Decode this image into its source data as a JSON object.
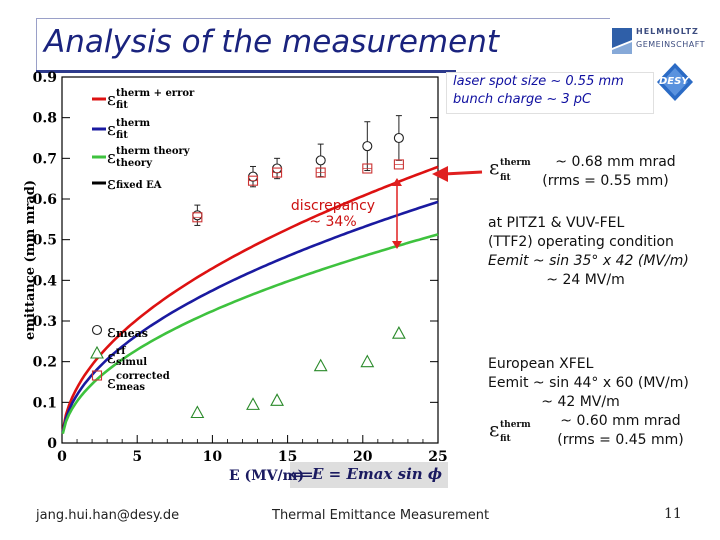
{
  "slide": {
    "title": "Analysis of the measurement",
    "page_number": "11",
    "footer_email": "jang.hui.han@desy.de",
    "footer_title": "Thermal Emittance Measurement"
  },
  "logos": {
    "helmholtz_line1": "HELMHOLTZ",
    "helmholtz_line2": "GEMEINSCHAFT",
    "desy": "DESY"
  },
  "notes": {
    "laser_spot": "laser spot size ~ 0.55 mm",
    "bunch_charge": "bunch charge ~ 3 pC",
    "fit_value": "~ 0.68 mm mrad",
    "fit_rrms": "(rrms = 0.55 mm)",
    "pitz_line1": "at PITZ1 & VUV-FEL",
    "pitz_line2": "(TTF2) operating condition",
    "pitz_line3": "Eemit ~ sin 35° x 42 (MV/m)",
    "pitz_line4": "~ 24 MV/m",
    "xfel_line1": "European XFEL",
    "xfel_line2": "Eemit ~ sin 44° x 60 (MV/m)",
    "xfel_line3": "~ 42 MV/m",
    "xfel_line4": "~ 0.60 mm mrad",
    "xfel_line5": "(rrms = 0.45 mm)",
    "discrepancy": "discrepancy",
    "discrepancy_value": "~ 34%",
    "formula": "E = Emax sin ϕ"
  },
  "colors": {
    "title": "#1a237e",
    "fit_error": "#dd1111",
    "fit_therm": "#1a1aa0",
    "theory": "#3ec23e",
    "fixed": "#000000",
    "meas": "#222222",
    "simul": "#2a8a2a",
    "corrected": "#cc3333",
    "arrow": "#e02020"
  },
  "chart_data": {
    "type": "scatter",
    "xlabel": "E (MV/m)",
    "ylabel": "emittance (mm mrad)",
    "xlim": [
      0,
      25
    ],
    "ylim": [
      0,
      0.9
    ],
    "xticks": [
      "0",
      "5",
      "10",
      "15",
      "20",
      "25"
    ],
    "yticks": [
      "0",
      "0.1",
      "0.2",
      "0.3",
      "0.4",
      "0.5",
      "0.6",
      "0.7",
      "0.8",
      "0.9"
    ],
    "curves": [
      {
        "name": "therm + error",
        "color": "#dd1111",
        "coef": 0.1358
      },
      {
        "name": "therm",
        "color": "#1a1aa0",
        "coef": 0.1186
      },
      {
        "name": "therm theory",
        "color": "#3ec23e",
        "coef": 0.1026
      }
    ],
    "legend_lines": [
      "therm + error",
      "therm",
      "therm theory",
      "fixed EA"
    ],
    "legend_markers": [
      "meas",
      "rf simul",
      "corrected meas"
    ],
    "series": [
      {
        "name": "meas",
        "marker": "circle",
        "x": [
          9,
          12.7,
          14.3,
          17.2,
          20.3,
          22.4
        ],
        "y": [
          0.56,
          0.655,
          0.675,
          0.695,
          0.73,
          0.75
        ],
        "err": [
          0.025,
          0.025,
          0.025,
          0.04,
          0.06,
          0.055
        ]
      },
      {
        "name": "corrected meas",
        "marker": "square",
        "x": [
          9,
          12.7,
          14.3,
          17.2,
          20.3,
          22.4
        ],
        "y": [
          0.555,
          0.645,
          0.665,
          0.665,
          0.675,
          0.685
        ]
      },
      {
        "name": "rf simul",
        "marker": "triangle",
        "x": [
          9,
          12.7,
          14.3,
          17.2,
          20.3,
          22.4
        ],
        "y": [
          0.075,
          0.095,
          0.105,
          0.19,
          0.2,
          0.27
        ]
      }
    ]
  }
}
